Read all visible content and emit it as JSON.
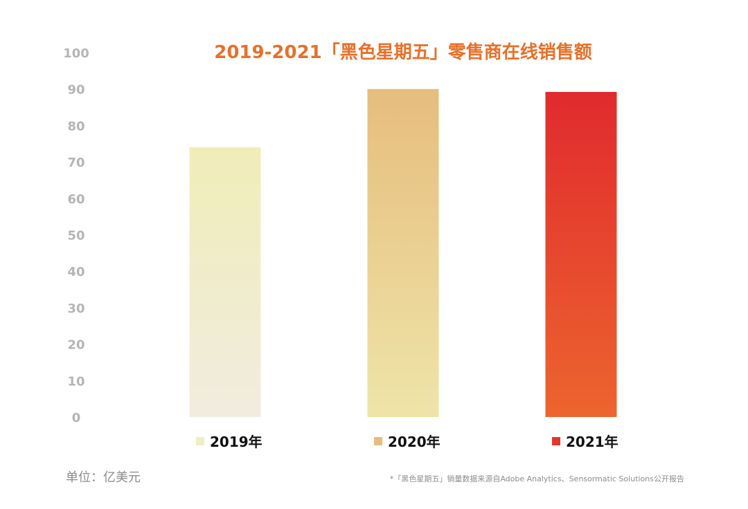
{
  "chart_data": {
    "type": "bar",
    "title": "2019-2021「黑色星期五」零售商在线销售额",
    "categories": [
      "2019年",
      "2020年",
      "2021年"
    ],
    "values": [
      74,
      90,
      89.2
    ],
    "ylim": [
      0,
      100
    ],
    "yticks": [
      0,
      10,
      20,
      30,
      40,
      50,
      60,
      70,
      80,
      90,
      100
    ],
    "grid": false,
    "legend_position": "bottom",
    "colors": [
      {
        "top": "#f0edb8",
        "bottom": "#f1ecdf"
      },
      {
        "top": "#e6bd7e",
        "bottom": "#efe4a8"
      },
      {
        "top": "#e12a2e",
        "bottom": "#ec652e"
      }
    ],
    "legend_colors": [
      "#efefc4",
      "#e6bd7e",
      "#e3372e"
    ]
  },
  "footer": {
    "unit": "单位：亿美元",
    "source": "*「黑色星期五」销量数据来源自Adobe Analytics、Sensormatic Solutions公开报告"
  }
}
